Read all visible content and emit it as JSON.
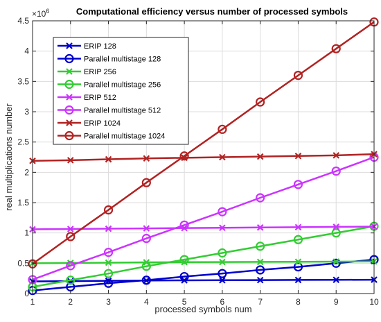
{
  "chart_data": {
    "type": "line",
    "title": "Computational efficiency versus number of processed symbols",
    "xlabel": "processed symbols num",
    "ylabel": "real multiplications number",
    "y_exponent_label": "×10",
    "y_exponent_power": "6",
    "xlim": [
      1,
      10
    ],
    "ylim": [
      0,
      4.5
    ],
    "x_ticks": [
      "1",
      "2",
      "3",
      "4",
      "5",
      "6",
      "7",
      "8",
      "9",
      "10"
    ],
    "y_ticks": [
      "0",
      "0.5",
      "1",
      "1.5",
      "2",
      "2.5",
      "3",
      "3.5",
      "4",
      "4.5"
    ],
    "grid": true,
    "legend_position": "top-left",
    "x": [
      1,
      2,
      3,
      4,
      5,
      6,
      7,
      8,
      9,
      10
    ],
    "series": [
      {
        "name": "ERIP 128",
        "color": "#0000cd",
        "marker": "x",
        "values": [
          0.2,
          0.205,
          0.21,
          0.215,
          0.218,
          0.22,
          0.222,
          0.224,
          0.226,
          0.228
        ]
      },
      {
        "name": "Parallel multistage 128",
        "color": "#0000cd",
        "marker": "o",
        "values": [
          0.05,
          0.11,
          0.17,
          0.22,
          0.28,
          0.33,
          0.39,
          0.44,
          0.5,
          0.56
        ]
      },
      {
        "name": "ERIP 256",
        "color": "#33cc33",
        "marker": "x",
        "values": [
          0.5,
          0.505,
          0.51,
          0.515,
          0.518,
          0.52,
          0.522,
          0.524,
          0.527,
          0.53
        ]
      },
      {
        "name": "Parallel multistage 256",
        "color": "#33cc33",
        "marker": "o",
        "values": [
          0.11,
          0.22,
          0.33,
          0.45,
          0.56,
          0.67,
          0.78,
          0.89,
          1.0,
          1.11
        ]
      },
      {
        "name": "ERIP 512",
        "color": "#cc33ff",
        "marker": "x",
        "values": [
          1.06,
          1.065,
          1.07,
          1.075,
          1.08,
          1.085,
          1.09,
          1.095,
          1.1,
          1.105
        ]
      },
      {
        "name": "Parallel multistage 512",
        "color": "#cc33ff",
        "marker": "o",
        "values": [
          0.23,
          0.46,
          0.68,
          0.91,
          1.13,
          1.35,
          1.58,
          1.8,
          2.02,
          2.25
        ]
      },
      {
        "name": "ERIP 1024",
        "color": "#b22222",
        "marker": "x",
        "values": [
          2.19,
          2.2,
          2.215,
          2.23,
          2.24,
          2.25,
          2.26,
          2.27,
          2.28,
          2.3
        ]
      },
      {
        "name": "Parallel multistage 1024",
        "color": "#b22222",
        "marker": "o",
        "values": [
          0.49,
          0.94,
          1.38,
          1.83,
          2.27,
          2.71,
          3.16,
          3.6,
          4.04,
          4.48
        ]
      }
    ]
  }
}
